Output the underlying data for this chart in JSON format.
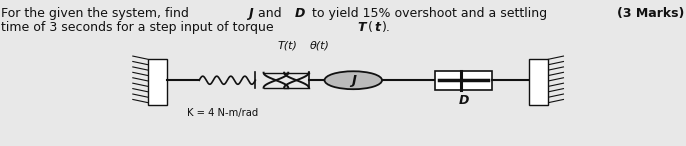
{
  "bg_color": "#e8e8e8",
  "diagram_color": "#111111",
  "text_color": "#111111",
  "marks_text": "(3 Marks)",
  "label_K": "K = 4 N-m/rad",
  "label_J": "J",
  "label_D": "D",
  "label_Tt": "T(t)",
  "label_theta": "θ(t)",
  "fig_width": 6.86,
  "fig_height": 1.46,
  "dpi": 100,
  "xlim": [
    0,
    10
  ],
  "ylim": [
    0,
    10
  ]
}
